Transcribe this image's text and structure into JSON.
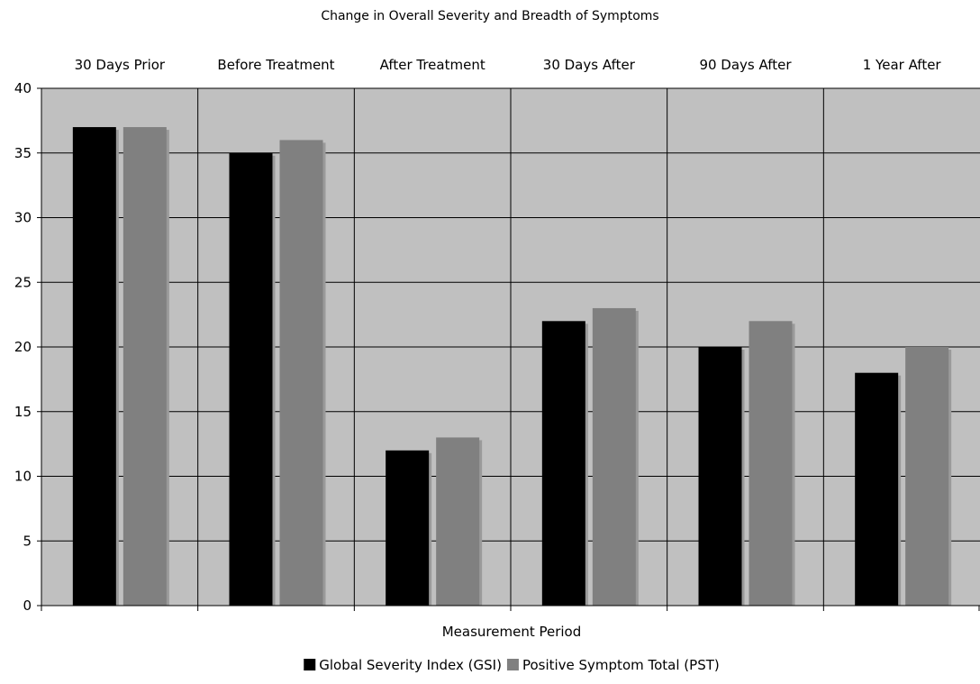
{
  "chart_data": {
    "type": "bar",
    "title": "Change in Overall Severity and Breadth of Symptoms",
    "xlabel": "Measurement Period",
    "ylabel": "",
    "categories": [
      "30 Days Prior",
      "Before Treatment",
      "After Treatment",
      "30 Days After",
      "90 Days After",
      "1 Year After"
    ],
    "series": [
      {
        "name": "Global Severity Index (GSI)",
        "values": [
          37,
          35,
          12,
          22,
          20,
          18
        ]
      },
      {
        "name": "Positive Symptom Total (PST)",
        "values": [
          37,
          36,
          13,
          23,
          22,
          20
        ]
      }
    ],
    "ylim": [
      0,
      40
    ],
    "yticks": [
      "0",
      "5",
      "10",
      "15",
      "20",
      "25",
      "30",
      "35",
      "40"
    ],
    "ytick_values": [
      0,
      5,
      10,
      15,
      20,
      25,
      30,
      35,
      40
    ],
    "category_labels_position": "top",
    "grid": true,
    "legend_position": "bottom",
    "colors": {
      "plot_background": "#c0c0c0",
      "series": [
        "#000000",
        "#808080"
      ],
      "shadow": "#9a9a9a",
      "grid": "#000000"
    }
  }
}
